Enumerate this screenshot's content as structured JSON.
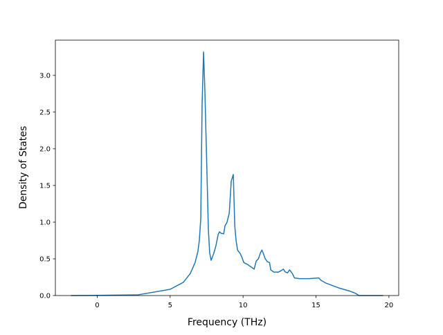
{
  "chart_data": {
    "type": "line",
    "xlabel": "Frequency (THz)",
    "ylabel": "Density of States",
    "xlim": [
      -2.87,
      20.67
    ],
    "ylim": [
      0,
      3.48
    ],
    "xticks": [
      0,
      5,
      10,
      15,
      20
    ],
    "yticks": [
      {
        "value": 0,
        "label": "0.0"
      },
      {
        "value": 0.5,
        "label": "0.5"
      },
      {
        "value": 1,
        "label": "1.0"
      },
      {
        "value": 1.5,
        "label": "1.5"
      },
      {
        "value": 2,
        "label": "2.0"
      },
      {
        "value": 2.5,
        "label": "2.5"
      },
      {
        "value": 3,
        "label": "3.0"
      }
    ],
    "series": [
      {
        "color": "#1f77b4",
        "x": [
          -1.8,
          0,
          2.8,
          5,
          5.9,
          6.38,
          6.71,
          6.9,
          7.0,
          7.1,
          7.19,
          7.29,
          7.38,
          7.52,
          7.62,
          7.71,
          7.81,
          8.0,
          8.14,
          8.29,
          8.38,
          8.48,
          8.67,
          8.76,
          8.9,
          9.05,
          9.19,
          9.33,
          9.43,
          9.52,
          9.62,
          9.81,
          9.9,
          10.05,
          10.33,
          10.62,
          10.76,
          10.9,
          11.05,
          11.19,
          11.29,
          11.38,
          11.52,
          11.67,
          11.81,
          11.9,
          12.1,
          12.43,
          12.62,
          12.76,
          12.9,
          13.05,
          13.19,
          13.38,
          13.52,
          13.86,
          14.52,
          15.19,
          15.33,
          15.67,
          16.62,
          17.33,
          17.71,
          17.95,
          19,
          19.6
        ],
        "values": [
          0,
          0.002,
          0.01,
          0.085,
          0.18,
          0.3,
          0.45,
          0.6,
          0.75,
          1.05,
          2.6,
          3.32,
          2.8,
          1.7,
          0.9,
          0.58,
          0.48,
          0.58,
          0.68,
          0.83,
          0.87,
          0.85,
          0.84,
          0.95,
          1.0,
          1.12,
          1.56,
          1.65,
          0.95,
          0.75,
          0.62,
          0.57,
          0.53,
          0.45,
          0.42,
          0.38,
          0.36,
          0.47,
          0.5,
          0.58,
          0.62,
          0.58,
          0.5,
          0.46,
          0.45,
          0.35,
          0.32,
          0.32,
          0.34,
          0.36,
          0.32,
          0.31,
          0.35,
          0.3,
          0.24,
          0.23,
          0.23,
          0.24,
          0.21,
          0.17,
          0.1,
          0.06,
          0.03,
          0,
          0,
          0
        ]
      }
    ]
  }
}
